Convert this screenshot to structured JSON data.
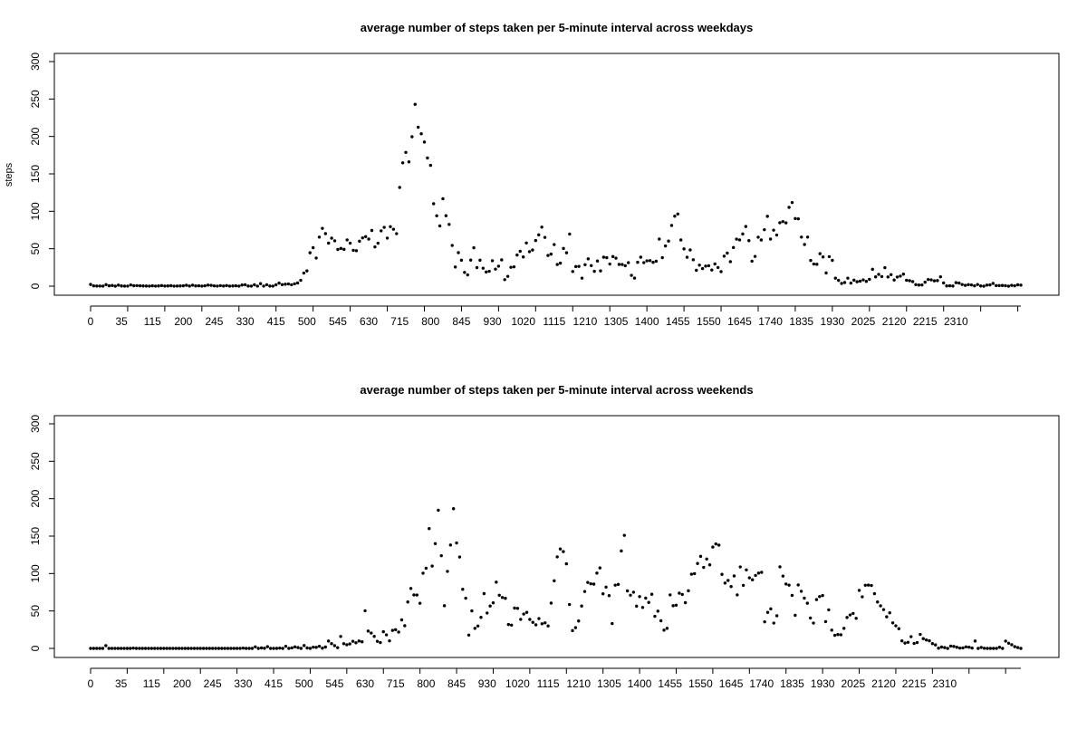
{
  "chart_data": [
    {
      "type": "scatter",
      "title": "average number of steps taken per 5-minute interval across weekdays",
      "xlabel": "",
      "ylabel": "steps",
      "ylim": [
        0,
        310
      ],
      "yticks": [
        0,
        50,
        100,
        150,
        200,
        250,
        300
      ],
      "xtick_labels": [
        "0",
        "35",
        "115",
        "200",
        "245",
        "330",
        "415",
        "500",
        "545",
        "630",
        "715",
        "800",
        "845",
        "930",
        "1020",
        "1115",
        "1210",
        "1305",
        "1400",
        "1455",
        "1550",
        "1645",
        "1740",
        "1835",
        "1930",
        "2025",
        "2120",
        "2215",
        "2310"
      ],
      "grid": false,
      "marker_color": "#000000",
      "values": [
        2.3,
        0.4,
        0.2,
        0.2,
        0.1,
        2.1,
        0.5,
        0.9,
        0,
        1.4,
        0.3,
        0.1,
        0.1,
        1.6,
        0.6,
        0.7,
        0.5,
        0.3,
        0.2,
        0.1,
        0.5,
        0.1,
        0.3,
        0.8,
        0.2,
        0.3,
        0.6,
        0.1,
        0.2,
        0.3,
        0.5,
        1.2,
        0.2,
        1.3,
        0.3,
        0.5,
        0.1,
        0.5,
        1.4,
        1.1,
        0.4,
        0.1,
        0.7,
        0.2,
        0.8,
        0.1,
        0.3,
        0.5,
        0.1,
        1.5,
        1.9,
        0.2,
        0.1,
        1.8,
        0.1,
        3.4,
        0.1,
        1.9,
        0.2,
        0.1,
        1.8,
        4.1,
        2.1,
        2.6,
        3,
        1.9,
        3.1,
        4.3,
        7.8,
        17.5,
        20.4,
        44.6,
        51.4,
        37.6,
        65.6,
        77.2,
        70.2,
        57.5,
        64.1,
        60.6,
        49,
        50.4,
        49.2,
        61.8,
        57.4,
        47.9,
        47.4,
        60.1,
        64.5,
        66.2,
        62.9,
        74.4,
        52.4,
        57.4,
        73.9,
        78.6,
        64.2,
        79.5,
        76,
        70.1,
        131.9,
        164.8,
        178.7,
        166.1,
        199.6,
        242.9,
        212.3,
        203.6,
        192.5,
        171.2,
        161.4,
        110.1,
        94,
        80.5,
        116.8,
        94.1,
        82.5,
        54.4,
        25.6,
        44.8,
        34.7,
        18.4,
        15.1,
        34.8,
        51.3,
        24.8,
        34.7,
        24,
        18.9,
        19.9,
        34,
        22.8,
        26.7,
        35.1,
        8.7,
        13.1,
        25.2,
        25.8,
        41.6,
        46.6,
        39,
        57.7,
        46.1,
        48.3,
        61,
        68.5,
        78.9,
        65.1,
        41,
        42.8,
        55.6,
        28.9,
        30.7,
        50.4,
        44.6,
        69.6,
        19.6,
        26.2,
        26.4,
        10.7,
        28.7,
        36.5,
        27.5,
        19.8,
        33.6,
        20.4,
        38.7,
        38.1,
        29.6,
        39.5,
        37.4,
        29.1,
        28.9,
        27.3,
        31.4,
        14.5,
        10.8,
        31.9,
        38.7,
        31.4,
        33.8,
        34.1,
        31.8,
        33.3,
        62.9,
        38.1,
        53.7,
        60.2,
        81.1,
        93.5,
        96.4,
        61.7,
        49.8,
        38.6,
        48.4,
        35.3,
        21.2,
        28.1,
        23.5,
        26.8,
        27.3,
        21.6,
        29.7,
        24.9,
        19.4,
        40.1,
        44.2,
        32.7,
        51.6,
        62.8,
        61.8,
        69.7,
        79.7,
        60.8,
        33.4,
        39.7,
        65.4,
        61.7,
        75.4,
        93.3,
        62.9,
        74.8,
        68.3,
        84.7,
        86.3,
        84.6,
        105.3,
        111.7,
        90.3,
        89.9,
        65.6,
        55.7,
        65.6,
        34.4,
        29.6,
        29.2,
        43.4,
        39,
        17.7,
        39.4,
        34.5,
        10.7,
        7.7,
        3.7,
        4.9,
        10.7,
        4.1,
        8,
        5.9,
        6.7,
        8.4,
        6.4,
        9.1,
        22.6,
        12.4,
        15.8,
        12.8,
        24.7,
        12.3,
        15.4,
        8.2,
        12.2,
        13.4,
        16.1,
        7.9,
        7.3,
        6.1,
        2.1,
        1.5,
        1.6,
        5.3,
        8.9,
        8.4,
        7.1,
        7.4,
        12.5,
        4.3,
        0.3,
        0.5,
        0.2,
        4.7,
        4.1,
        2.2,
        1.1,
        2,
        1.6,
        0.4,
        2.2,
        0.3,
        0,
        1.4,
        1.7,
        3.7,
        0.8,
        0.8,
        0.9,
        0.6,
        0,
        1.1,
        0.5,
        1.8,
        1.4
      ]
    },
    {
      "type": "scatter",
      "title": "average number of steps taken per 5-minute interval across weekends",
      "xlabel": "",
      "ylabel": "",
      "ylim": [
        0,
        310
      ],
      "yticks": [
        0,
        50,
        100,
        150,
        200,
        250,
        300
      ],
      "xtick_labels": [
        "0",
        "35",
        "115",
        "200",
        "245",
        "330",
        "415",
        "500",
        "545",
        "630",
        "715",
        "800",
        "845",
        "930",
        "1020",
        "1115",
        "1210",
        "1305",
        "1400",
        "1455",
        "1550",
        "1645",
        "1740",
        "1835",
        "1930",
        "2025",
        "2120",
        "2215",
        "2310"
      ],
      "grid": false,
      "marker_color": "#000000",
      "values": [
        0,
        0,
        0,
        0,
        0,
        3.7,
        0,
        0,
        0,
        0,
        0,
        0,
        0,
        0,
        0.4,
        0,
        0,
        0,
        0,
        0,
        0,
        0,
        0,
        0,
        0,
        0,
        0,
        0,
        0,
        0,
        0,
        0,
        0,
        0,
        0,
        0,
        0,
        0,
        0,
        0,
        0,
        0,
        0,
        0,
        0,
        0,
        0,
        0,
        0,
        0,
        0.4,
        0,
        0,
        0,
        2.1,
        0,
        0.6,
        0.2,
        2.3,
        0,
        0,
        0,
        0.4,
        0,
        2.8,
        0,
        0.7,
        2.1,
        1.1,
        0,
        3.8,
        0.6,
        0,
        1.6,
        1.4,
        2.8,
        0.3,
        1.8,
        9.9,
        6.4,
        3.7,
        1,
        16,
        6.3,
        4.9,
        6,
        9.5,
        7.5,
        9.9,
        8.8,
        50.3,
        23.2,
        20.5,
        16.1,
        9.5,
        7.8,
        22.3,
        18.1,
        10.1,
        24.1,
        25,
        21.8,
        38.1,
        30.3,
        62,
        80.1,
        71.4,
        71.3,
        60.3,
        100.5,
        107.1,
        160,
        110,
        140,
        184.6,
        123.8,
        57,
        102.9,
        138.1,
        186.6,
        140.9,
        122.1,
        79,
        67.1,
        17.8,
        50.1,
        26.8,
        29.9,
        41.5,
        73.2,
        47.3,
        56.6,
        60.9,
        88.5,
        71,
        68,
        66.9,
        31.9,
        31.1,
        53.9,
        53.5,
        38.8,
        45.9,
        48.1,
        38.7,
        34.8,
        31.5,
        39.9,
        32.9,
        34.1,
        30,
        60.5,
        90.3,
        122.3,
        132.8,
        129.3,
        113,
        58.6,
        23.8,
        27.7,
        36.6,
        56.6,
        76,
        88.1,
        86.3,
        85.9,
        100.6,
        107.5,
        72.9,
        81.9,
        70.5,
        33.2,
        84.5,
        85.5,
        130.2,
        151,
        76.8,
        71,
        75.1,
        56.4,
        69.2,
        54.7,
        67.2,
        61.4,
        72.3,
        42.9,
        49.8,
        36.9,
        24.4,
        26.8,
        71.5,
        57,
        57.7,
        73.8,
        72.1,
        61.1,
        77,
        99.1,
        99.9,
        113.4,
        123,
        108.2,
        119.4,
        111.6,
        135.4,
        139.5,
        137.9,
        98.9,
        87.3,
        90.8,
        82.6,
        96.8,
        71.5,
        108.8,
        84.2,
        104.9,
        94.3,
        91.7,
        97.5,
        100.6,
        101.6,
        35.5,
        48.1,
        52.8,
        33.8,
        43.6,
        108.9,
        96.6,
        86,
        84.5,
        70.8,
        44.2,
        84.8,
        76.3,
        67.2,
        60.4,
        40.6,
        33.8,
        65.2,
        69.2,
        70.6,
        35.8,
        51.5,
        24.4,
        17.5,
        18.5,
        18.2,
        26.8,
        41.3,
        44.7,
        46.7,
        40.2,
        77.5,
        68.9,
        84.3,
        84.6,
        84,
        73.1,
        62,
        56.9,
        51.8,
        42.2,
        47.5,
        34.1,
        30.2,
        26.3,
        10,
        7.1,
        8.1,
        15.7,
        6.6,
        7.8,
        18.7,
        13,
        11.3,
        10.2,
        6.4,
        4.7,
        0.3,
        1.8,
        1.1,
        0,
        3.1,
        2.6,
        1.5,
        0.4,
        0.7,
        2.1,
        1.6,
        0.5,
        9.9,
        0,
        1.3,
        0.2,
        0,
        0,
        0,
        0,
        1.5,
        0,
        9.8,
        6.9,
        4.9,
        2.3,
        1.1,
        0
      ]
    }
  ]
}
